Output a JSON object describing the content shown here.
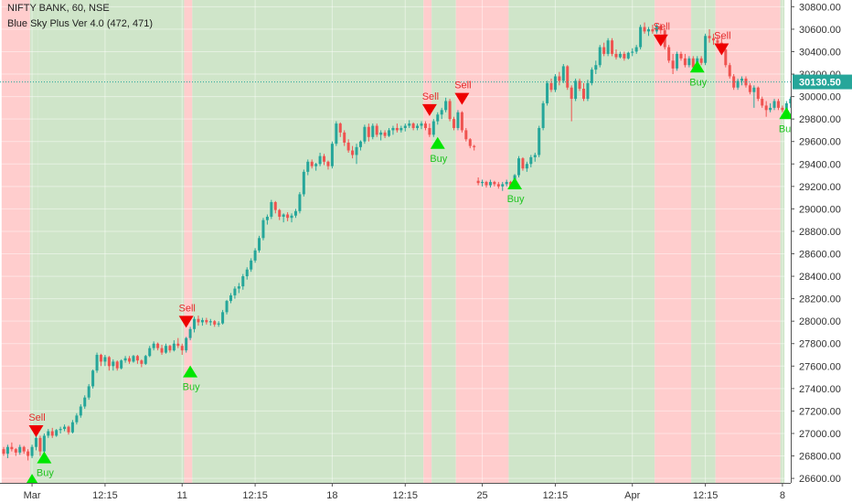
{
  "legend": {
    "symbol_line": "NIFTY BANK, 60, NSE",
    "indicator_line": "Blue Sky Plus Ver 4.0 (472, 471)"
  },
  "colors": {
    "up": "#26a69a",
    "down": "#ef5350",
    "bg_buy": "#cfe5c9",
    "bg_sell": "#ffcdcd",
    "buy_marker": "#00e600",
    "sell_marker": "#ee0000",
    "buy_text": "#21c421",
    "sell_text": "#e42a2a",
    "price_line": "#26a69a",
    "price_tag_bg": "#26a69a",
    "axis_text": "#333333"
  },
  "chart_data": {
    "type": "candlestick",
    "title": "NIFTY BANK, 60, NSE",
    "indicator": "Blue Sky Plus Ver 4.0 (472, 471)",
    "ylim": [
      26560,
      30860
    ],
    "y_ticks": [
      26600,
      26800,
      27000,
      27200,
      27400,
      27600,
      27800,
      28000,
      28200,
      28400,
      28600,
      28800,
      29000,
      29200,
      29400,
      29600,
      29800,
      30000,
      30200,
      30400,
      30600,
      30800
    ],
    "y_tick_labels": [
      "26600.00",
      "26800.00",
      "27000.00",
      "27200.00",
      "27400.00",
      "27600.00",
      "27800.00",
      "28000.00",
      "28200.00",
      "28400.00",
      "28600.00",
      "28800.00",
      "29000.00",
      "29200.00",
      "29400.00",
      "29600.00",
      "29800.00",
      "30000.00",
      "30200.00",
      "30400.00",
      "30600.00",
      "30800.00"
    ],
    "x_tick_labels": [
      "Mar",
      "12:15",
      "11",
      "12:15",
      "18",
      "12:15",
      "25",
      "12:15",
      "Apr",
      "12:15",
      "8"
    ],
    "x_tick_bars": [
      7,
      25,
      44,
      62,
      81,
      99,
      118,
      136,
      155,
      173,
      192
    ],
    "last_price": 30130.5,
    "last_price_label": "30130.50",
    "background_regions": [
      {
        "start": 0,
        "end": 7,
        "signal": "sell"
      },
      {
        "start": 7,
        "end": 9,
        "signal": "buy"
      },
      {
        "start": 9,
        "end": 45,
        "signal": "sell_pending"
      },
      {
        "start": 45,
        "end": 47,
        "signal": "sell"
      },
      {
        "start": 47,
        "end": 104,
        "signal": "buy"
      },
      {
        "start": 104,
        "end": 106,
        "signal": "sell"
      },
      {
        "start": 106,
        "end": 112,
        "signal": "buy"
      },
      {
        "start": 112,
        "end": 125,
        "signal": "sell"
      },
      {
        "start": 125,
        "end": 161,
        "signal": "buy"
      },
      {
        "start": 161,
        "end": 170,
        "signal": "sell"
      },
      {
        "start": 170,
        "end": 176,
        "signal": "buy"
      },
      {
        "start": 176,
        "end": 192,
        "signal": "sell"
      },
      {
        "start": 192,
        "end": 193,
        "signal": "buy"
      }
    ],
    "signals": [
      {
        "type": "buy",
        "bar": 7,
        "price": 26640,
        "label": ""
      },
      {
        "type": "sell",
        "bar": 8,
        "price": 26975,
        "label": "Sell"
      },
      {
        "type": "buy",
        "bar": 10,
        "price": 26840,
        "label": "Buy"
      },
      {
        "type": "sell",
        "bar": 45,
        "price": 27950,
        "label": "Sell"
      },
      {
        "type": "buy",
        "bar": 46,
        "price": 27605,
        "label": "Buy"
      },
      {
        "type": "sell",
        "bar": 105,
        "price": 29835,
        "label": "Sell"
      },
      {
        "type": "buy",
        "bar": 107,
        "price": 29640,
        "label": "Buy"
      },
      {
        "type": "sell",
        "bar": 113,
        "price": 29935,
        "label": "Sell"
      },
      {
        "type": "buy",
        "bar": 126,
        "price": 29280,
        "label": "Buy"
      },
      {
        "type": "sell",
        "bar": 162,
        "price": 30455,
        "label": "Sell"
      },
      {
        "type": "buy",
        "bar": 171,
        "price": 30320,
        "label": "Buy"
      },
      {
        "type": "sell",
        "bar": 177,
        "price": 30375,
        "label": "Sell"
      },
      {
        "type": "buy",
        "bar": 193,
        "price": 29905,
        "label": "Buy"
      }
    ],
    "candles": [
      [
        26860,
        26880,
        26800,
        26820
      ],
      [
        26820,
        26900,
        26780,
        26880
      ],
      [
        26880,
        26920,
        26840,
        26860
      ],
      [
        26860,
        26870,
        26800,
        26830
      ],
      [
        26830,
        26900,
        26810,
        26880
      ],
      [
        26880,
        26890,
        26820,
        26840
      ],
      [
        26840,
        26860,
        26760,
        26800
      ],
      [
        26800,
        26900,
        26780,
        26880
      ],
      [
        26880,
        26990,
        26850,
        26960
      ],
      [
        26960,
        26980,
        26800,
        26840
      ],
      [
        26840,
        27000,
        26830,
        26980
      ],
      [
        26980,
        27040,
        26960,
        27020
      ],
      [
        27020,
        27050,
        26960,
        26980
      ],
      [
        26980,
        27040,
        26970,
        27030
      ],
      [
        27030,
        27060,
        27000,
        27040
      ],
      [
        27040,
        27080,
        27020,
        27060
      ],
      [
        27060,
        27070,
        26990,
        27010
      ],
      [
        27010,
        27120,
        27000,
        27100
      ],
      [
        27100,
        27180,
        27080,
        27160
      ],
      [
        27160,
        27260,
        27140,
        27240
      ],
      [
        27240,
        27340,
        27220,
        27320
      ],
      [
        27320,
        27440,
        27300,
        27420
      ],
      [
        27420,
        27570,
        27400,
        27560
      ],
      [
        27560,
        27720,
        27540,
        27700
      ],
      [
        27700,
        27710,
        27600,
        27640
      ],
      [
        27640,
        27700,
        27600,
        27680
      ],
      [
        27680,
        27690,
        27560,
        27600
      ],
      [
        27600,
        27660,
        27560,
        27640
      ],
      [
        27640,
        27650,
        27560,
        27580
      ],
      [
        27580,
        27660,
        27570,
        27650
      ],
      [
        27650,
        27690,
        27630,
        27670
      ],
      [
        27670,
        27690,
        27620,
        27640
      ],
      [
        27640,
        27700,
        27630,
        27690
      ],
      [
        27690,
        27700,
        27620,
        27650
      ],
      [
        27650,
        27660,
        27590,
        27620
      ],
      [
        27620,
        27700,
        27610,
        27690
      ],
      [
        27690,
        27780,
        27680,
        27760
      ],
      [
        27760,
        27820,
        27740,
        27800
      ],
      [
        27800,
        27810,
        27740,
        27760
      ],
      [
        27760,
        27790,
        27700,
        27720
      ],
      [
        27720,
        27800,
        27710,
        27780
      ],
      [
        27780,
        27790,
        27720,
        27740
      ],
      [
        27740,
        27830,
        27730,
        27800
      ],
      [
        27800,
        27850,
        27760,
        27780
      ],
      [
        27780,
        27800,
        27700,
        27740
      ],
      [
        27740,
        27860,
        27720,
        27850
      ],
      [
        27850,
        27950,
        27830,
        27930
      ],
      [
        27930,
        28040,
        27900,
        28020
      ],
      [
        28020,
        28050,
        27960,
        27990
      ],
      [
        27990,
        28030,
        27960,
        28010
      ],
      [
        28010,
        28030,
        27970,
        27990
      ],
      [
        27990,
        28020,
        27960,
        28000
      ],
      [
        28000,
        28010,
        27950,
        27970
      ],
      [
        27970,
        28000,
        27950,
        27980
      ],
      [
        27980,
        28100,
        27970,
        28080
      ],
      [
        28080,
        28190,
        28060,
        28180
      ],
      [
        28180,
        28250,
        28160,
        28230
      ],
      [
        28230,
        28310,
        28200,
        28290
      ],
      [
        28290,
        28340,
        28250,
        28310
      ],
      [
        28310,
        28420,
        28280,
        28400
      ],
      [
        28400,
        28480,
        28370,
        28460
      ],
      [
        28460,
        28560,
        28440,
        28540
      ],
      [
        28540,
        28650,
        28520,
        28630
      ],
      [
        28630,
        28760,
        28610,
        28740
      ],
      [
        28740,
        28920,
        28720,
        28900
      ],
      [
        28900,
        28950,
        28860,
        28930
      ],
      [
        28930,
        29080,
        28910,
        29060
      ],
      [
        29060,
        29070,
        28960,
        28990
      ],
      [
        28990,
        29000,
        28900,
        28930
      ],
      [
        28930,
        28960,
        28880,
        28950
      ],
      [
        28950,
        28970,
        28890,
        28920
      ],
      [
        28920,
        28960,
        28880,
        28940
      ],
      [
        28940,
        29000,
        28920,
        28980
      ],
      [
        28980,
        29150,
        28960,
        29130
      ],
      [
        29130,
        29350,
        29110,
        29330
      ],
      [
        29330,
        29440,
        29300,
        29420
      ],
      [
        29420,
        29440,
        29360,
        29380
      ],
      [
        29380,
        29410,
        29340,
        29400
      ],
      [
        29400,
        29500,
        29380,
        29470
      ],
      [
        29470,
        29490,
        29390,
        29420
      ],
      [
        29420,
        29430,
        29350,
        29380
      ],
      [
        29380,
        29600,
        29360,
        29580
      ],
      [
        29580,
        29780,
        29560,
        29760
      ],
      [
        29760,
        29770,
        29640,
        29680
      ],
      [
        29680,
        29700,
        29560,
        29590
      ],
      [
        29590,
        29620,
        29500,
        29520
      ],
      [
        29520,
        29560,
        29450,
        29480
      ],
      [
        29480,
        29580,
        29400,
        29550
      ],
      [
        29550,
        29610,
        29520,
        29600
      ],
      [
        29600,
        29750,
        29580,
        29730
      ],
      [
        29730,
        29760,
        29600,
        29640
      ],
      [
        29640,
        29760,
        29620,
        29740
      ],
      [
        29740,
        29760,
        29640,
        29660
      ],
      [
        29660,
        29700,
        29610,
        29680
      ],
      [
        29680,
        29700,
        29630,
        29650
      ],
      [
        29650,
        29720,
        29640,
        29700
      ],
      [
        29700,
        29740,
        29660,
        29720
      ],
      [
        29720,
        29760,
        29680,
        29700
      ],
      [
        29700,
        29740,
        29680,
        29720
      ],
      [
        29720,
        29760,
        29690,
        29740
      ],
      [
        29740,
        29790,
        29720,
        29760
      ],
      [
        29760,
        29770,
        29700,
        29720
      ],
      [
        29720,
        29760,
        29700,
        29740
      ],
      [
        29740,
        29780,
        29710,
        29760
      ],
      [
        29760,
        29780,
        29700,
        29720
      ],
      [
        29720,
        29760,
        29640,
        29660
      ],
      [
        29660,
        29800,
        29640,
        29780
      ],
      [
        29780,
        29860,
        29750,
        29840
      ],
      [
        29840,
        29900,
        29800,
        29880
      ],
      [
        29880,
        29990,
        29860,
        29960
      ],
      [
        29960,
        29980,
        29780,
        29800
      ],
      [
        29800,
        29820,
        29700,
        29720
      ],
      [
        29720,
        29880,
        29700,
        29860
      ],
      [
        29860,
        29870,
        29680,
        29700
      ],
      [
        29700,
        29720,
        29600,
        29620
      ],
      [
        29620,
        29630,
        29540,
        29560
      ],
      [
        29560,
        29570,
        29520,
        29550
      ],
      [
        29250,
        29280,
        29210,
        29230
      ],
      [
        29230,
        29260,
        29200,
        29240
      ],
      [
        29240,
        29250,
        29190,
        29210
      ],
      [
        29210,
        29260,
        29190,
        29240
      ],
      [
        29240,
        29250,
        29200,
        29220
      ],
      [
        29220,
        29240,
        29180,
        29200
      ],
      [
        29200,
        29240,
        29160,
        29220
      ],
      [
        29220,
        29260,
        29200,
        29240
      ],
      [
        29240,
        29250,
        29180,
        29200
      ],
      [
        29200,
        29310,
        29190,
        29300
      ],
      [
        29300,
        29470,
        29280,
        29450
      ],
      [
        29450,
        29460,
        29340,
        29360
      ],
      [
        29360,
        29420,
        29330,
        29400
      ],
      [
        29400,
        29480,
        29370,
        29460
      ],
      [
        29460,
        29500,
        29420,
        29480
      ],
      [
        29480,
        29740,
        29460,
        29720
      ],
      [
        29720,
        29960,
        29700,
        29940
      ],
      [
        29940,
        30140,
        29920,
        30120
      ],
      [
        30120,
        30160,
        30040,
        30060
      ],
      [
        30060,
        30200,
        30040,
        30180
      ],
      [
        30180,
        30220,
        30100,
        30140
      ],
      [
        30140,
        30290,
        30120,
        30270
      ],
      [
        30270,
        30280,
        30060,
        30080
      ],
      [
        30080,
        30100,
        29780,
        29980
      ],
      [
        29980,
        30160,
        29960,
        30140
      ],
      [
        30140,
        30160,
        30050,
        30070
      ],
      [
        30070,
        30120,
        29960,
        29980
      ],
      [
        29980,
        30150,
        29960,
        30120
      ],
      [
        30120,
        30260,
        30100,
        30240
      ],
      [
        30240,
        30320,
        30200,
        30280
      ],
      [
        30280,
        30460,
        30260,
        30440
      ],
      [
        30440,
        30480,
        30360,
        30380
      ],
      [
        30380,
        30520,
        30360,
        30500
      ],
      [
        30500,
        30520,
        30360,
        30380
      ],
      [
        30380,
        30420,
        30330,
        30350
      ],
      [
        30350,
        30400,
        30340,
        30380
      ],
      [
        30380,
        30400,
        30320,
        30340
      ],
      [
        30340,
        30400,
        30330,
        30390
      ],
      [
        30390,
        30430,
        30360,
        30400
      ],
      [
        30400,
        30460,
        30380,
        30440
      ],
      [
        30440,
        30640,
        30420,
        30620
      ],
      [
        30620,
        30660,
        30560,
        30580
      ],
      [
        30580,
        30620,
        30540,
        30600
      ],
      [
        30600,
        30640,
        30560,
        30580
      ],
      [
        30580,
        30650,
        30560,
        30630
      ],
      [
        30630,
        30650,
        30560,
        30590
      ],
      [
        30590,
        30610,
        30420,
        30440
      ],
      [
        30440,
        30460,
        30300,
        30320
      ],
      [
        30320,
        30380,
        30200,
        30250
      ],
      [
        30250,
        30400,
        30230,
        30380
      ],
      [
        30380,
        30400,
        30320,
        30340
      ],
      [
        30340,
        30380,
        30260,
        30280
      ],
      [
        30280,
        30360,
        30260,
        30340
      ],
      [
        30340,
        30360,
        30240,
        30260
      ],
      [
        30260,
        30360,
        30240,
        30340
      ],
      [
        30340,
        30360,
        30280,
        30300
      ],
      [
        30300,
        30560,
        30280,
        30540
      ],
      [
        30540,
        30600,
        30480,
        30520
      ],
      [
        30520,
        30560,
        30460,
        30500
      ],
      [
        30500,
        30540,
        30460,
        30480
      ],
      [
        30480,
        30520,
        30400,
        30420
      ],
      [
        30420,
        30440,
        30260,
        30280
      ],
      [
        30280,
        30300,
        30160,
        30180
      ],
      [
        30180,
        30200,
        30060,
        30080
      ],
      [
        30080,
        30160,
        30060,
        30140
      ],
      [
        30140,
        30180,
        30100,
        30160
      ],
      [
        30160,
        30180,
        30080,
        30100
      ],
      [
        30100,
        30120,
        30020,
        30040
      ],
      [
        30040,
        30100,
        29900,
        30080
      ],
      [
        30080,
        30090,
        29960,
        29980
      ],
      [
        29980,
        30000,
        29900,
        29920
      ],
      [
        29920,
        29960,
        29820,
        29880
      ],
      [
        29880,
        29940,
        29860,
        29900
      ],
      [
        29900,
        29980,
        29880,
        29960
      ],
      [
        29960,
        29980,
        29880,
        29900
      ],
      [
        29900,
        29920,
        29860,
        29880
      ],
      [
        29880,
        29960,
        29860,
        29940
      ],
      [
        29940,
        30000,
        29900,
        29980
      ],
      [
        29980,
        30160,
        29960,
        30130
      ]
    ]
  }
}
